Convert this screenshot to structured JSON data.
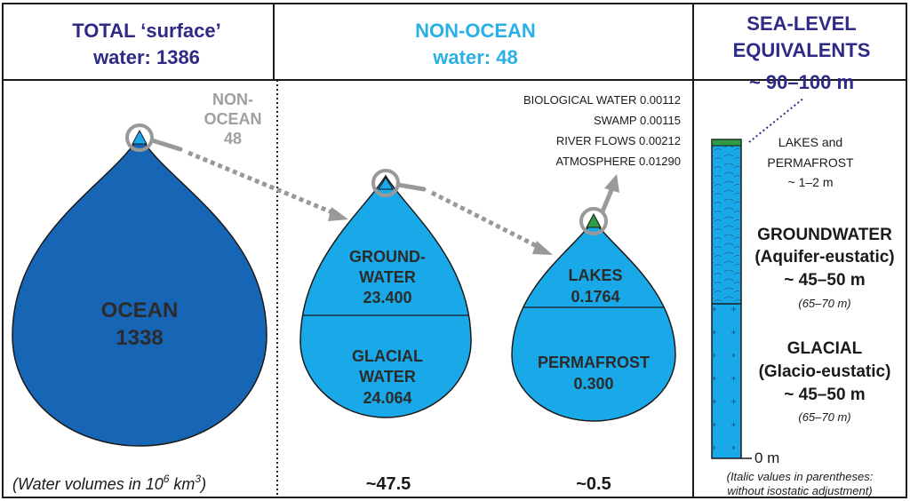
{
  "colors": {
    "navy": "#2e2a86",
    "cyan": "#2ab0e6",
    "ocean_blue": "#1766b5",
    "light_blue": "#1aa9e8",
    "green": "#2e9a44",
    "gray": "#999999",
    "black": "#1a1a1a"
  },
  "columns": {
    "total": {
      "line1": "TOTAL ‘surface’",
      "line2": "water: 1386"
    },
    "non_ocean": {
      "line1": "NON-OCEAN",
      "line2": "water: 48"
    },
    "sea_level": {
      "line1": "SEA-LEVEL",
      "line2": "EQUIVALENTS",
      "line3": "~ 90–100 m"
    }
  },
  "non_ocean_callout": {
    "line1": "NON-",
    "line2": "OCEAN",
    "line3": "48"
  },
  "ocean_drop": {
    "label": "OCEAN",
    "value": "1338"
  },
  "groundwater_drop": {
    "top_label1": "GROUND-",
    "top_label2": "WATER",
    "top_value": "23.400",
    "bottom_label1": "GLACIAL",
    "bottom_label2": "WATER",
    "bottom_value": "24.064",
    "total": "~47.5"
  },
  "lakes_drop": {
    "top_label": "LAKES",
    "top_value": "0.1764",
    "bottom_label": "PERMAFROST",
    "bottom_value": "0.300",
    "total": "~0.5"
  },
  "minor_stores": [
    "BIOLOGICAL WATER 0.00112",
    "SWAMP 0.00115",
    "RIVER FLOWS 0.00212",
    "ATMOSPHERE 0.01290"
  ],
  "units_note": {
    "text": "(Water volumes in 10",
    "exp1": "6",
    "mid": " km",
    "exp2": "3",
    "end": ")"
  },
  "sea_level": {
    "lakes_permafrost": {
      "line1": "LAKES and",
      "line2": "PERMAFROST",
      "line3": "~ 1–2 m"
    },
    "groundwater": {
      "line1": "GROUNDWATER",
      "line2": "(Aquifer-eustatic)",
      "line3": "~ 45–50 m",
      "line4": "(65–70 m)"
    },
    "glacial": {
      "line1": "GLACIAL",
      "line2": "(Glacio-eustatic)",
      "line3": "~ 45–50 m",
      "line4": "(65–70 m)"
    },
    "zero_label": "0 m",
    "footnote1": "(Italic values in parentheses:",
    "footnote2": "without isostatic adjustment)"
  }
}
